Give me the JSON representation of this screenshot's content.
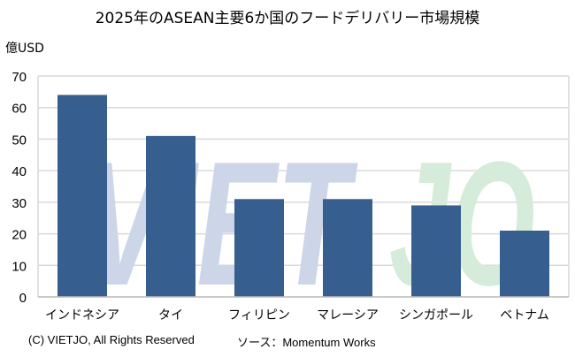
{
  "chart_data": {
    "type": "bar",
    "title": "2025年のASEAN主要6か国のフードデリバリー市場規模",
    "ylabel": "億USD",
    "xlabel": "",
    "categories": [
      "インドネシア",
      "タイ",
      "フィリピン",
      "マレーシア",
      "シンガポール",
      "ベトナム"
    ],
    "values": [
      64,
      51,
      31,
      31,
      29,
      21
    ],
    "ylim": [
      0,
      70
    ],
    "yticks": [
      0,
      10,
      20,
      30,
      40,
      50,
      60,
      70
    ],
    "grid": true,
    "bar_color": "#365F8F"
  },
  "watermark": {
    "text_left": "VIET",
    "text_right": "JO",
    "color_left": "#CDD6E8",
    "color_right": "#D4ECD9"
  },
  "footer": {
    "copyright": "(C) VIETJO, All Rights Reserved",
    "source": "ソース：Momentum Works"
  }
}
